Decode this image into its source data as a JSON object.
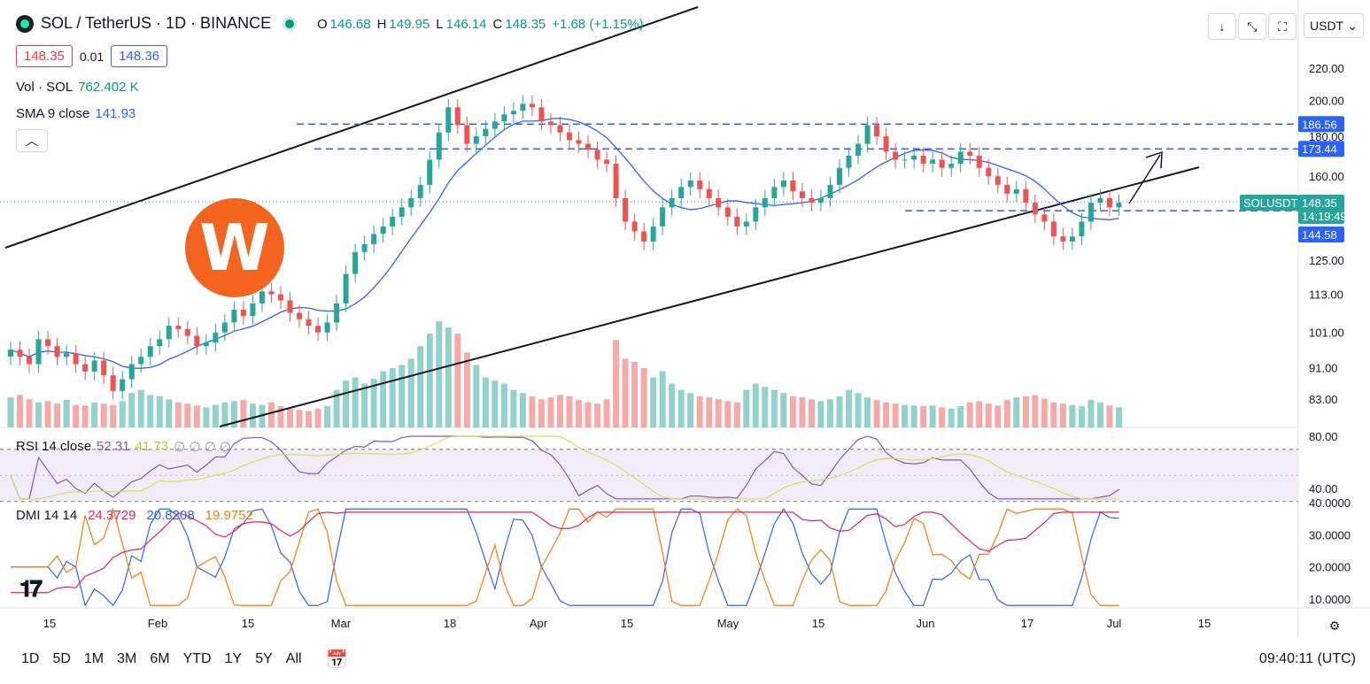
{
  "header": {
    "symbol_title": "SOL / TetherUS · 1D · BINANCE",
    "ohlc": {
      "o_label": "O",
      "o": "146.68",
      "h_label": "H",
      "h": "149.95",
      "l_label": "L",
      "l": "146.14",
      "c_label": "C",
      "c": "148.35",
      "change": "+1.68 (+1.15%)"
    },
    "bid": "148.35",
    "spread": "0.01",
    "ask": "148.36"
  },
  "indicators": {
    "vol": {
      "label": "Vol · SOL",
      "value": "762.402 K"
    },
    "sma": {
      "label": "SMA 9 close",
      "value": "141.93"
    },
    "rsi": {
      "label": "RSI 14 close",
      "v1": "52.31",
      "v2": "41.73",
      "extra": "∅ ∅ ∅ ∅"
    },
    "dmi": {
      "label": "DMI 14 14",
      "plus": "24.3729",
      "minus": "20.8208",
      "adx": "19.9752"
    }
  },
  "currency_select": "USDT",
  "timeframes": [
    "1D",
    "5D",
    "1M",
    "3M",
    "6M",
    "YTD",
    "1Y",
    "5Y",
    "All"
  ],
  "clock": "09:40:11 (UTC)",
  "chart_data": {
    "type": "candlestick",
    "price_scale": "log",
    "price_ticks": [
      "220.00",
      "200.00",
      "180.00",
      "160.00",
      "148.35",
      "125.00",
      "113.00",
      "101.00",
      "91.00",
      "83.00"
    ],
    "x_ticks": [
      "15",
      "Feb",
      "15",
      "Mar",
      "18",
      "Apr",
      "15",
      "May",
      "15",
      "Jun",
      "17",
      "Jul",
      "15"
    ],
    "price_labels": [
      {
        "text": "186.56",
        "color": "#2962ff"
      },
      {
        "text": "173.44",
        "color": "#2962ff"
      },
      {
        "text": "SOLUSDT",
        "color": "#26a69a"
      },
      {
        "text": "148.35",
        "color": "#26a69a"
      },
      {
        "text": "14:19:49",
        "color": "#26a69a"
      },
      {
        "text": "144.58",
        "color": "#2962ff"
      }
    ],
    "horizontal_levels": [
      186.56,
      173.44,
      144.58
    ],
    "close_series": [
      96,
      94,
      92,
      99,
      97,
      94,
      95,
      92,
      90,
      93,
      89,
      85,
      88,
      92,
      94,
      97,
      99,
      103,
      102,
      100,
      97,
      98,
      101,
      104,
      108,
      106,
      110,
      114,
      113,
      111,
      107,
      105,
      103,
      101,
      104,
      110,
      120,
      128,
      131,
      135,
      138,
      142,
      146,
      150,
      156,
      168,
      182,
      196,
      186,
      176,
      180,
      184,
      188,
      192,
      194,
      198,
      196,
      188,
      186,
      182,
      178,
      176,
      173,
      168,
      166,
      150,
      140,
      136,
      132,
      138,
      146,
      150,
      155,
      158,
      154,
      150,
      146,
      142,
      138,
      140,
      146,
      150,
      155,
      158,
      153,
      150,
      148,
      150,
      156,
      164,
      170,
      176,
      186,
      180,
      172,
      168,
      168,
      170,
      166,
      168,
      164,
      166,
      172,
      170,
      164,
      160,
      156,
      152,
      154,
      148,
      143,
      140,
      134,
      132,
      134,
      140,
      148,
      150,
      146,
      148
    ],
    "volume_series": [
      48,
      52,
      45,
      40,
      42,
      38,
      44,
      36,
      35,
      40,
      38,
      36,
      42,
      55,
      60,
      52,
      50,
      45,
      40,
      38,
      35,
      32,
      36,
      40,
      42,
      44,
      38,
      36,
      40,
      34,
      30,
      28,
      26,
      30,
      34,
      60,
      75,
      80,
      70,
      78,
      90,
      95,
      100,
      110,
      130,
      150,
      170,
      160,
      150,
      120,
      100,
      80,
      75,
      70,
      60,
      55,
      50,
      45,
      48,
      52,
      50,
      44,
      40,
      38,
      45,
      140,
      110,
      105,
      95,
      80,
      90,
      70,
      60,
      55,
      50,
      48,
      45,
      42,
      40,
      60,
      70,
      65,
      60,
      55,
      50,
      48,
      45,
      42,
      45,
      50,
      60,
      55,
      48,
      44,
      40,
      38,
      36,
      35,
      34,
      35,
      32,
      30,
      34,
      40,
      42,
      38,
      35,
      44,
      48,
      50,
      52,
      46,
      40,
      38,
      36,
      34,
      44,
      40,
      35,
      32
    ],
    "rsi_range": [
      40,
      80
    ],
    "dmi_range": [
      10,
      40
    ],
    "dmi_series": [
      {
        "name": "+DI",
        "color": "#2962ff"
      },
      {
        "name": "-DI",
        "color": "#f57c00"
      },
      {
        "name": "ADX",
        "color": "#e91e63"
      }
    ]
  }
}
